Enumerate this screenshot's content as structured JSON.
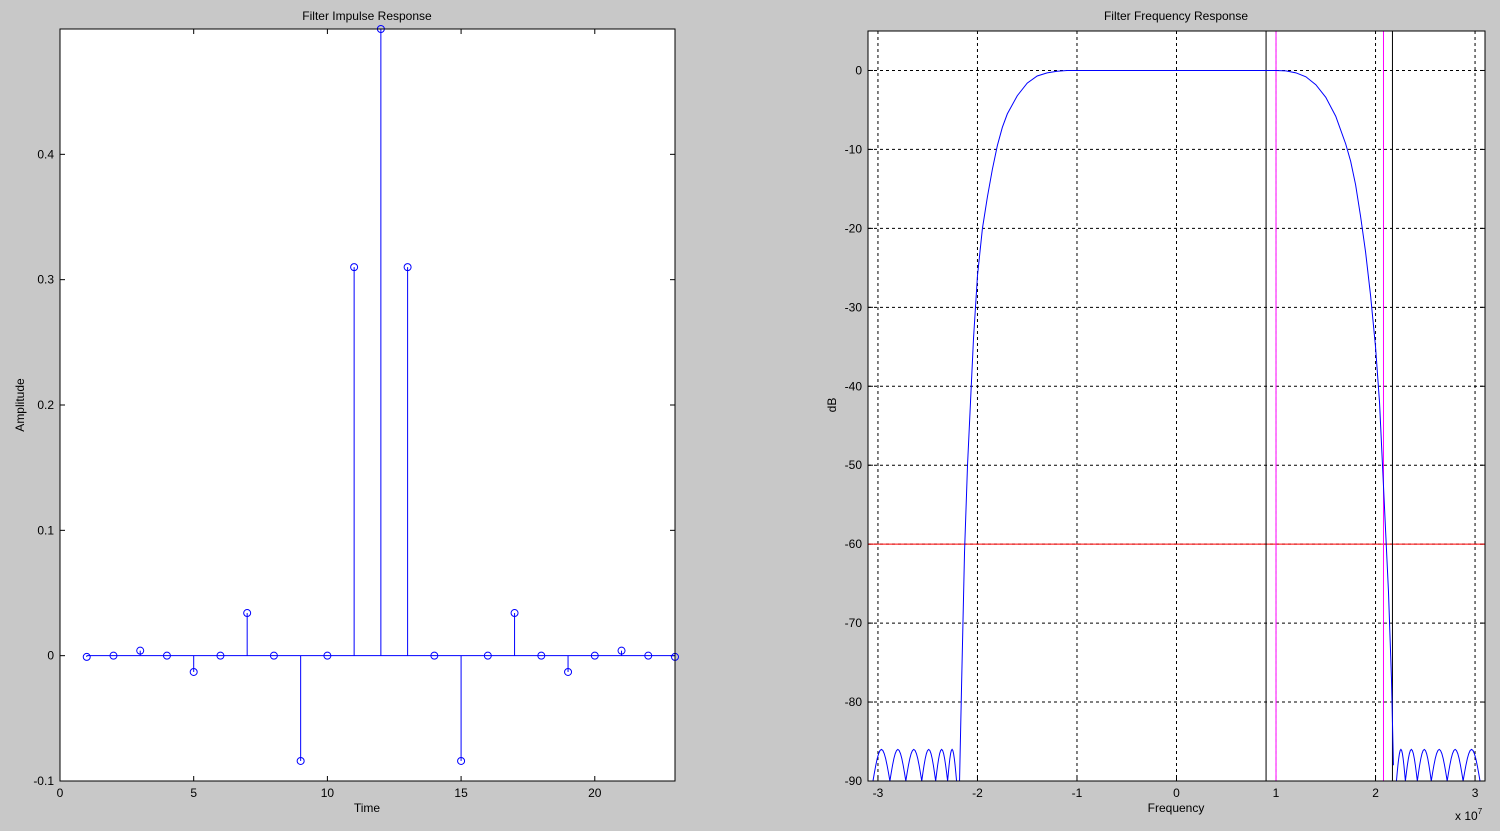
{
  "colors": {
    "figure_bg": "#c8c8c8",
    "axes_bg": "#ffffff",
    "series": "#0000ff",
    "threshold": "#ff0000",
    "marker_magenta": "#ff00ff",
    "marker_black": "#000000"
  },
  "chart_data": [
    {
      "type": "stem",
      "title": "Filter Impulse Response",
      "xlabel": "Time",
      "ylabel": "Amplitude",
      "xlim": [
        0,
        23
      ],
      "ylim": [
        -0.1,
        0.5
      ],
      "xticks": [
        0,
        5,
        10,
        15,
        20
      ],
      "yticks": [
        -0.1,
        0,
        0.1,
        0.2,
        0.3,
        0.4
      ],
      "ytick_labels": [
        "-0.1",
        "0",
        "0.1",
        "0.2",
        "0.3",
        "0.4"
      ],
      "grid": false,
      "series": [
        {
          "x": [
            1,
            2,
            3,
            4,
            5,
            6,
            7,
            8,
            9,
            10,
            11,
            12,
            13,
            14,
            15,
            16,
            17,
            18,
            19,
            20,
            21,
            22,
            23
          ],
          "values": [
            -0.001,
            0,
            0.004,
            0,
            -0.013,
            0,
            0.034,
            0,
            -0.084,
            0,
            0.31,
            0.5,
            0.31,
            0,
            -0.084,
            0,
            0.034,
            0,
            -0.013,
            0,
            0.004,
            0,
            -0.001
          ]
        }
      ]
    },
    {
      "type": "line",
      "title": "Filter Frequency Response",
      "xlabel": "Frequency",
      "ylabel": "dB",
      "x_exponent_label": "x 10",
      "x_exponent_power": "7",
      "xlim": [
        -3.1,
        3.1
      ],
      "ylim": [
        -90,
        5
      ],
      "xticks": [
        -3,
        -2,
        -1,
        0,
        1,
        2,
        3
      ],
      "yticks": [
        0,
        -10,
        -20,
        -30,
        -40,
        -50,
        -60,
        -70,
        -80,
        -90
      ],
      "grid": true,
      "series": [
        {
          "x": [
            -2.18,
            -2.16,
            -2.13,
            -2.1,
            -2.07,
            -2.04,
            -2.0,
            -1.95,
            -1.9,
            -1.85,
            -1.8,
            -1.75,
            -1.7,
            -1.6,
            -1.5,
            -1.4,
            -1.3,
            -1.2,
            -1.1,
            -1.0,
            -0.5,
            0.0,
            0.5,
            1.0,
            1.1,
            1.2,
            1.3,
            1.4,
            1.5,
            1.6,
            1.7,
            1.75,
            1.8,
            1.85,
            1.9,
            1.95,
            2.0,
            2.04,
            2.07,
            2.1,
            2.13,
            2.16,
            2.18
          ],
          "values": [
            -90,
            -78,
            -61,
            -50,
            -42,
            -34,
            -26,
            -20,
            -16,
            -12.5,
            -9.5,
            -7.2,
            -5.5,
            -3.2,
            -1.6,
            -0.7,
            -0.3,
            -0.1,
            0,
            0,
            0,
            0,
            0,
            0,
            -0.05,
            -0.3,
            -0.8,
            -1.8,
            -3.4,
            -5.8,
            -9.3,
            -11.5,
            -14.5,
            -18.5,
            -23,
            -28.5,
            -35,
            -42,
            -50,
            -58,
            -66,
            -77,
            -88
          ]
        }
      ],
      "stopband_ripple": {
        "left_lobe_edges": [
          -3.05,
          -2.88,
          -2.72,
          -2.56,
          -2.42,
          -2.3,
          -2.21
        ],
        "right_lobe_edges": [
          2.21,
          2.3,
          2.42,
          2.56,
          2.72,
          2.88,
          3.05
        ],
        "peak_db": -86,
        "floor_db": -90
      },
      "hlines": [
        {
          "y": -60,
          "color": "#ff0000"
        }
      ],
      "vlines": [
        {
          "x": 0.9,
          "color": "#000000"
        },
        {
          "x": 1.0,
          "color": "#ff00ff"
        },
        {
          "x": 2.08,
          "color": "#ff00ff"
        },
        {
          "x": 2.17,
          "color": "#000000"
        }
      ]
    }
  ]
}
